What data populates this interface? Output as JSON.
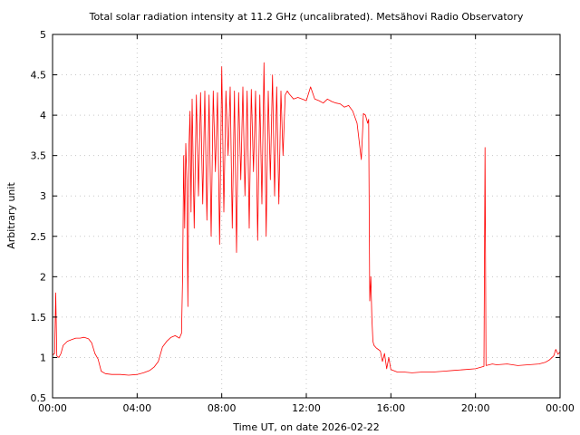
{
  "chart_data": {
    "type": "line",
    "title": "Total solar radiation intensity at 11.2 GHz (uncalibrated). Metsähovi Radio Observatory",
    "xlabel": "Time UT, on date 2026-02-22",
    "ylabel": "Arbitrary unit",
    "xlim": [
      0,
      24
    ],
    "ylim": [
      0.5,
      5
    ],
    "x_ticks": [
      {
        "value": 0,
        "label": "00:00"
      },
      {
        "value": 4,
        "label": "04:00"
      },
      {
        "value": 8,
        "label": "08:00"
      },
      {
        "value": 12,
        "label": "12:00"
      },
      {
        "value": 16,
        "label": "16:00"
      },
      {
        "value": 20,
        "label": "20:00"
      },
      {
        "value": 24,
        "label": "00:00"
      }
    ],
    "y_ticks": [
      {
        "value": 0.5,
        "label": "0.5"
      },
      {
        "value": 1,
        "label": "1"
      },
      {
        "value": 1.5,
        "label": "1.5"
      },
      {
        "value": 2,
        "label": "2"
      },
      {
        "value": 2.5,
        "label": "2.5"
      },
      {
        "value": 3,
        "label": "3"
      },
      {
        "value": 3.5,
        "label": "3.5"
      },
      {
        "value": 4,
        "label": "4"
      },
      {
        "value": 4.5,
        "label": "4.5"
      },
      {
        "value": 5,
        "label": "5"
      }
    ],
    "grid": true,
    "line_color": "#ff0000",
    "series": [
      {
        "x": [
          0.0,
          0.1,
          0.15,
          0.2,
          0.3,
          0.4,
          0.5,
          0.7,
          0.9,
          1.1,
          1.3,
          1.5,
          1.7,
          1.85,
          2.0,
          2.15,
          2.3,
          2.5,
          2.8,
          3.2,
          3.6,
          4.0,
          4.3,
          4.6,
          4.8,
          5.0,
          5.2,
          5.4,
          5.6,
          5.8,
          6.0,
          6.1,
          6.15,
          6.2,
          6.25,
          6.3,
          6.35,
          6.4,
          6.45,
          6.5,
          6.55,
          6.6,
          6.7,
          6.8,
          6.9,
          7.0,
          7.1,
          7.2,
          7.3,
          7.4,
          7.5,
          7.6,
          7.7,
          7.8,
          7.9,
          8.0,
          8.1,
          8.2,
          8.3,
          8.4,
          8.5,
          8.6,
          8.7,
          8.8,
          8.9,
          9.0,
          9.1,
          9.2,
          9.3,
          9.4,
          9.5,
          9.6,
          9.7,
          9.8,
          9.9,
          10.0,
          10.1,
          10.2,
          10.3,
          10.4,
          10.5,
          10.6,
          10.7,
          10.8,
          10.9,
          11.0,
          11.1,
          11.2,
          11.4,
          11.6,
          11.8,
          12.0,
          12.2,
          12.4,
          12.6,
          12.8,
          13.0,
          13.2,
          13.4,
          13.6,
          13.8,
          14.0,
          14.2,
          14.4,
          14.6,
          14.7,
          14.8,
          14.9,
          14.95,
          15.0,
          15.05,
          15.1,
          15.15,
          15.2,
          15.3,
          15.4,
          15.5,
          15.6,
          15.7,
          15.8,
          15.9,
          16.0,
          16.3,
          16.6,
          17.0,
          17.5,
          18.0,
          18.5,
          19.0,
          19.5,
          20.0,
          20.4,
          20.45,
          20.5,
          20.8,
          21.0,
          21.5,
          22.0,
          22.5,
          23.0,
          23.3,
          23.5,
          23.7,
          23.8,
          23.9,
          24.0
        ],
        "y": [
          1.03,
          1.05,
          1.8,
          1.02,
          1.0,
          1.05,
          1.15,
          1.2,
          1.22,
          1.24,
          1.24,
          1.25,
          1.23,
          1.18,
          1.05,
          0.98,
          0.83,
          0.8,
          0.79,
          0.79,
          0.78,
          0.79,
          0.81,
          0.84,
          0.88,
          0.95,
          1.13,
          1.2,
          1.25,
          1.27,
          1.24,
          1.3,
          2.0,
          3.5,
          2.6,
          3.65,
          3.2,
          1.63,
          3.6,
          4.05,
          2.8,
          4.2,
          2.6,
          4.25,
          3.0,
          4.28,
          2.9,
          4.3,
          2.7,
          4.25,
          2.5,
          4.3,
          3.3,
          4.28,
          2.4,
          4.6,
          2.8,
          4.3,
          3.5,
          4.35,
          2.6,
          4.3,
          2.3,
          4.28,
          3.2,
          4.35,
          3.0,
          4.3,
          2.6,
          4.32,
          3.3,
          4.3,
          2.45,
          4.25,
          2.9,
          4.65,
          2.5,
          4.3,
          3.2,
          4.5,
          3.0,
          4.35,
          2.9,
          4.3,
          3.5,
          4.25,
          4.3,
          4.26,
          4.2,
          4.22,
          4.2,
          4.18,
          4.35,
          4.2,
          4.18,
          4.15,
          4.2,
          4.17,
          4.15,
          4.14,
          4.1,
          4.12,
          4.05,
          3.9,
          3.45,
          4.02,
          4.0,
          3.9,
          3.95,
          1.7,
          2.0,
          1.5,
          1.2,
          1.15,
          1.12,
          1.1,
          1.08,
          0.95,
          1.05,
          0.86,
          1.0,
          0.85,
          0.82,
          0.82,
          0.81,
          0.82,
          0.82,
          0.83,
          0.84,
          0.85,
          0.86,
          0.89,
          3.6,
          0.9,
          0.92,
          0.91,
          0.92,
          0.9,
          0.91,
          0.92,
          0.94,
          0.97,
          1.02,
          1.1,
          1.04,
          1.07
        ]
      }
    ]
  }
}
